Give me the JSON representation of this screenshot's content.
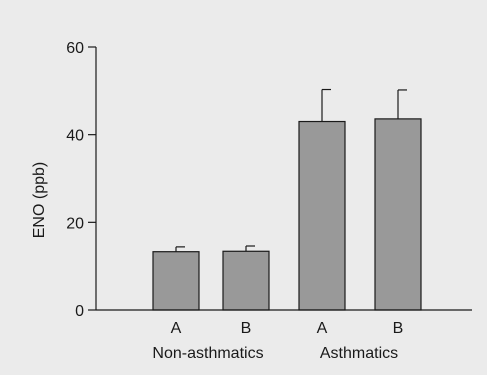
{
  "chart_data": {
    "type": "bar",
    "ylabel": "ENO (ppb)",
    "ylim": [
      0,
      60
    ],
    "yticks": [
      0,
      20,
      40,
      60
    ],
    "grid": false,
    "categories": [
      "A",
      "B",
      "A",
      "B"
    ],
    "groups": [
      "Non-asthmatics",
      "Asthmatics"
    ],
    "values": [
      13.3,
      13.4,
      43.0,
      43.6
    ],
    "errors": [
      1.1,
      1.2,
      7.3,
      6.6
    ],
    "bar_color": "#999999",
    "bar_edge_color": "#1a1a1a"
  }
}
